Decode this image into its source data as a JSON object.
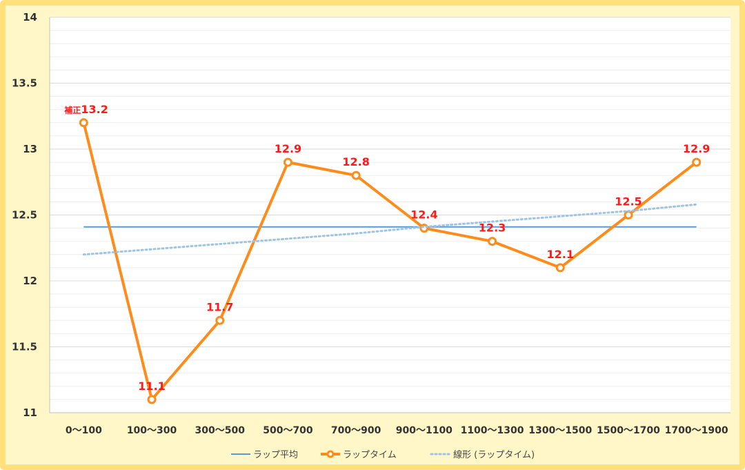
{
  "chart_data": {
    "type": "line",
    "categories": [
      "0～100",
      "100～300",
      "300～500",
      "500～700",
      "700～900",
      "900～1100",
      "1100～1300",
      "1300～1500",
      "1500～1700",
      "1700～1900"
    ],
    "ylim": [
      11,
      14
    ],
    "yticks": [
      "11",
      "11.5",
      "12",
      "12.5",
      "13",
      "13.5",
      "14"
    ],
    "grid": true,
    "legend_position": "bottom",
    "series": [
      {
        "name": "ラップ平均",
        "color": "#5b9bd5",
        "style": "solid",
        "values": [
          12.41,
          12.41,
          12.41,
          12.41,
          12.41,
          12.41,
          12.41,
          12.41,
          12.41,
          12.41
        ]
      },
      {
        "name": "ラップタイム",
        "color": "#ff8c1a",
        "style": "solid-markers",
        "values": [
          13.2,
          11.1,
          11.7,
          12.9,
          12.8,
          12.4,
          12.3,
          12.1,
          12.5,
          12.9
        ]
      },
      {
        "name": "線形 (ラップタイム)",
        "color": "#9dc3e6",
        "style": "dotted",
        "values": [
          12.2,
          12.24,
          12.28,
          12.32,
          12.36,
          12.41,
          12.45,
          12.49,
          12.53,
          12.58
        ]
      }
    ],
    "data_labels": [
      {
        "prefix": "補正",
        "text": "13.2"
      },
      {
        "prefix": "",
        "text": "11.1"
      },
      {
        "prefix": "",
        "text": "11.7"
      },
      {
        "prefix": "",
        "text": "12.9"
      },
      {
        "prefix": "",
        "text": "12.8"
      },
      {
        "prefix": "",
        "text": "12.4"
      },
      {
        "prefix": "",
        "text": "12.3"
      },
      {
        "prefix": "",
        "text": "12.1"
      },
      {
        "prefix": "",
        "text": "12.5"
      },
      {
        "prefix": "",
        "text": "12.9"
      }
    ]
  }
}
